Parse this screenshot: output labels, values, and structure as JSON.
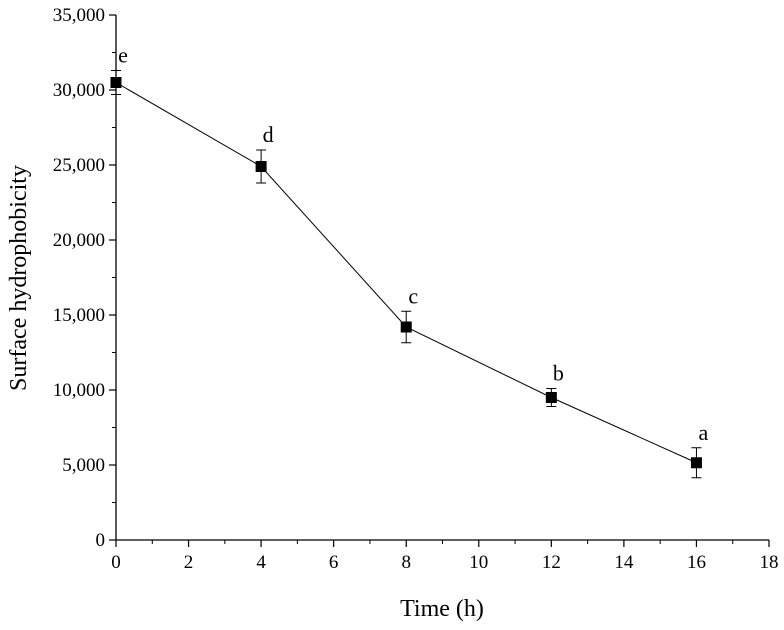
{
  "chart_data": {
    "type": "line",
    "xlabel": "Time (h)",
    "ylabel": "Surface hydrophobicity",
    "xlim": [
      0,
      18
    ],
    "ylim": [
      0,
      35000
    ],
    "x_ticks": [
      "0",
      "2",
      "4",
      "6",
      "8",
      "10",
      "12",
      "14",
      "16",
      "18"
    ],
    "y_ticks": [
      "0",
      "5,000",
      "10,000",
      "15,000",
      "20,000",
      "25,000",
      "30,000",
      "35,000"
    ],
    "grid": false,
    "series": [
      {
        "x": [
          0,
          4,
          8,
          12,
          16
        ],
        "y": [
          30500,
          24900,
          14200,
          9500,
          5150
        ],
        "error": [
          800,
          1100,
          1050,
          600,
          1000
        ],
        "labels": [
          "e",
          "d",
          "c",
          "b",
          "a"
        ],
        "marker": "square",
        "color": "#000000"
      }
    ]
  }
}
